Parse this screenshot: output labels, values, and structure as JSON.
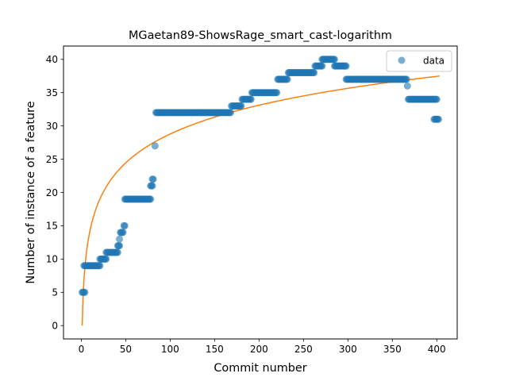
{
  "chart_data": {
    "type": "scatter",
    "title": "MGaetan89-ShowsRage_smart_cast-logarithm",
    "xlabel": "Commit number",
    "ylabel": "Number of instance of a feature",
    "xlim": [
      -20,
      423
    ],
    "ylim": [
      -2,
      42
    ],
    "x_ticks": [
      0,
      50,
      100,
      150,
      200,
      250,
      300,
      350,
      400
    ],
    "y_ticks": [
      0,
      5,
      10,
      15,
      20,
      25,
      30,
      35,
      40
    ],
    "legend": {
      "position": "top-right",
      "entries": [
        "data"
      ]
    },
    "grid": false,
    "colors": {
      "data": "#1f77b4",
      "fit": "#ff7f0e"
    },
    "series": [
      {
        "name": "data",
        "kind": "scatter",
        "segments": [
          {
            "x_start": 1,
            "x_end": 4,
            "y": 5
          },
          {
            "x_start": 3,
            "x_end": 21,
            "y": 9
          },
          {
            "x_start": 21,
            "x_end": 28,
            "y": 10
          },
          {
            "x_start": 28,
            "x_end": 41,
            "y": 11
          },
          {
            "x_start": 41,
            "x_end": 43,
            "y": 12
          },
          {
            "x_start": 43,
            "x_end": 43,
            "y": 13
          },
          {
            "x_start": 44,
            "x_end": 47,
            "y": 14
          },
          {
            "x_start": 48,
            "x_end": 49,
            "y": 15
          },
          {
            "x_start": 49,
            "x_end": 78,
            "y": 19
          },
          {
            "x_start": 78,
            "x_end": 80,
            "y": 21
          },
          {
            "x_start": 80,
            "x_end": 81,
            "y": 22
          },
          {
            "x_start": 83,
            "x_end": 83,
            "y": 27
          },
          {
            "x_start": 84,
            "x_end": 168,
            "y": 32
          },
          {
            "x_start": 169,
            "x_end": 180,
            "y": 33
          },
          {
            "x_start": 181,
            "x_end": 191,
            "y": 34
          },
          {
            "x_start": 192,
            "x_end": 220,
            "y": 35
          },
          {
            "x_start": 221,
            "x_end": 232,
            "y": 37
          },
          {
            "x_start": 233,
            "x_end": 262,
            "y": 38
          },
          {
            "x_start": 263,
            "x_end": 271,
            "y": 39
          },
          {
            "x_start": 271,
            "x_end": 285,
            "y": 40
          },
          {
            "x_start": 285,
            "x_end": 298,
            "y": 39
          },
          {
            "x_start": 298,
            "x_end": 366,
            "y": 37
          },
          {
            "x_start": 367,
            "x_end": 367,
            "y": 36
          },
          {
            "x_start": 368,
            "x_end": 400,
            "y": 34
          },
          {
            "x_start": 397,
            "x_end": 402,
            "y": 31
          }
        ]
      },
      {
        "name": "",
        "kind": "line",
        "model": "logarithmic",
        "a": 6.25,
        "b": 0,
        "x_range": [
          1,
          403
        ]
      }
    ]
  }
}
